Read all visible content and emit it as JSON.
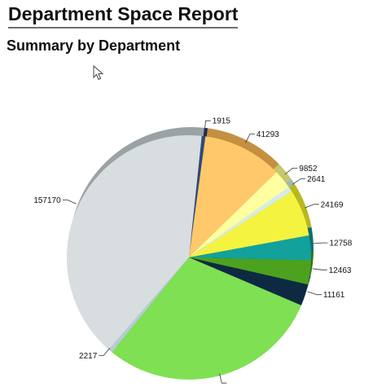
{
  "report": {
    "title": "Department Space Report",
    "subtitle": "Summary by Department"
  },
  "chart_data": {
    "type": "pie",
    "title": "",
    "legend": "none",
    "slices": [
      {
        "value": 1915,
        "label": "1915",
        "color": "#2e4a7a",
        "side": "#1c2f52"
      },
      {
        "value": 41293,
        "label": "41293",
        "color": "#ffc86a",
        "side": "#c49040"
      },
      {
        "value": 9852,
        "label": "9852",
        "color": "#ffffa0",
        "side": "#c6c66a"
      },
      {
        "value": 2641,
        "label": "2641",
        "color": "#d4ecec",
        "side": "#9eb8b8"
      },
      {
        "value": 24169,
        "label": "24169",
        "color": "#f4f440",
        "side": "#b8b820"
      },
      {
        "value": 12758,
        "label": "12758",
        "color": "#13a19c",
        "side": "#0c6f6b"
      },
      {
        "value": 12463,
        "label": "12463",
        "color": "#4ca21e",
        "side": "#356f14"
      },
      {
        "value": 11161,
        "label": "11161",
        "color": "#0d2a42",
        "side": "#06172a"
      },
      {
        "value": 115000,
        "label": "",
        "color": "#7ee052",
        "side": "#58a835"
      },
      {
        "value": 2217,
        "label": "2217",
        "color": "#b6ccd6",
        "side": "#8aa0aa"
      },
      {
        "value": 157170,
        "label": "157170",
        "color": "#d8dde0",
        "side": "#9ba2a6"
      }
    ]
  }
}
